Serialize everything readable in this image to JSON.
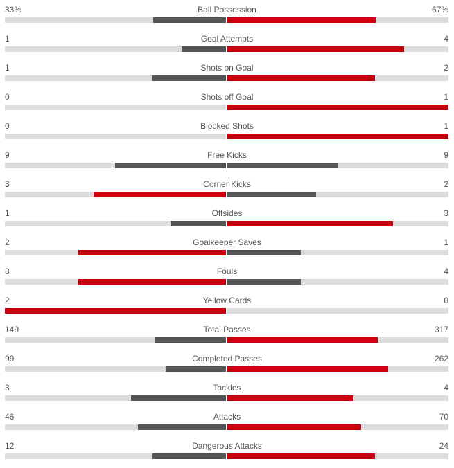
{
  "colors": {
    "leader": "#c8000f",
    "trailer": "#555555",
    "track": "#dcdcdc"
  },
  "chart_data": {
    "type": "bar",
    "orientation": "horizontal-diverging",
    "categories": [
      "Ball Possession",
      "Goal Attempts",
      "Shots on Goal",
      "Shots off Goal",
      "Blocked Shots",
      "Free Kicks",
      "Corner Kicks",
      "Offsides",
      "Goalkeeper Saves",
      "Fouls",
      "Yellow Cards",
      "Total Passes",
      "Completed Passes",
      "Tackles",
      "Attacks",
      "Dangerous Attacks"
    ],
    "home_display": [
      "33%",
      "1",
      "1",
      "0",
      "0",
      "9",
      "3",
      "1",
      "2",
      "8",
      "2",
      "149",
      "99",
      "3",
      "46",
      "12"
    ],
    "away_display": [
      "67%",
      "4",
      "2",
      "1",
      "1",
      "9",
      "2",
      "3",
      "1",
      "4",
      "0",
      "317",
      "262",
      "4",
      "70",
      "24"
    ],
    "series": [
      {
        "values": [
          33,
          1,
          1,
          0,
          0,
          9,
          3,
          1,
          2,
          8,
          2,
          149,
          99,
          3,
          46,
          12
        ]
      },
      {
        "values": [
          67,
          4,
          2,
          1,
          1,
          9,
          2,
          3,
          1,
          4,
          0,
          317,
          262,
          4,
          70,
          24
        ]
      }
    ]
  }
}
